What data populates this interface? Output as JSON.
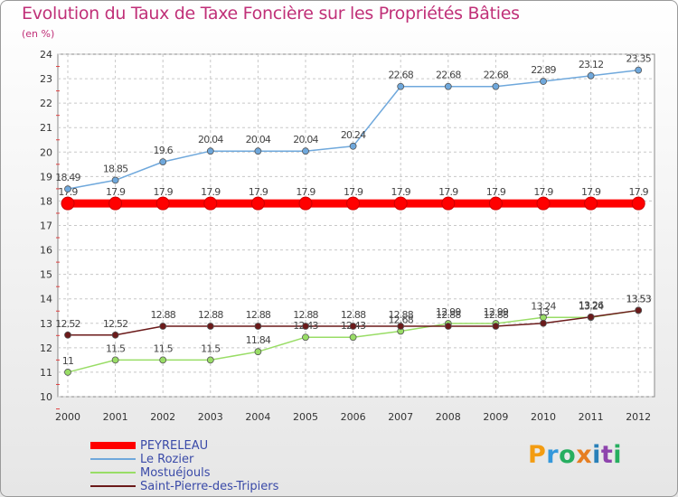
{
  "header": {
    "title": "Evolution du Taux de Taxe Foncière sur les Propriétés Bâties",
    "unit": "(en %)"
  },
  "logo": {
    "text": "Proxiti",
    "letters": [
      "P",
      "r",
      "o",
      "x",
      "i",
      "t",
      "i"
    ],
    "colors": [
      "#f39c12",
      "#3498db",
      "#27ae60",
      "#e67e22",
      "#2980b9",
      "#8e44ad",
      "#27ae60"
    ]
  },
  "chart_data": {
    "type": "line",
    "title": "Evolution du Taux de Taxe Foncière sur les Propriétés Bâties",
    "ylabel": "(en %)",
    "xlabel": "",
    "ylim": [
      10,
      24
    ],
    "yticks": [
      10,
      11,
      12,
      13,
      14,
      15,
      16,
      17,
      18,
      19,
      20,
      21,
      22,
      23,
      24
    ],
    "categories": [
      "2000",
      "2001",
      "2002",
      "2003",
      "2004",
      "2005",
      "2006",
      "2007",
      "2008",
      "2009",
      "2010",
      "2011",
      "2012"
    ],
    "grid": true,
    "legend_position": "bottom-left",
    "series": [
      {
        "name": "PEYRELEAU",
        "color": "#ff0000",
        "values": [
          17.9,
          17.9,
          17.9,
          17.9,
          17.9,
          17.9,
          17.9,
          17.9,
          17.9,
          17.9,
          17.9,
          17.9,
          17.9
        ],
        "labels": [
          "17.9",
          "17.9",
          "17.9",
          "17.9",
          "17.9",
          "17.9",
          "17.9",
          "17.9",
          "17.9",
          "17.9",
          "17.9",
          "17.9",
          "17.9"
        ]
      },
      {
        "name": "Le Rozier",
        "color": "#6fa8dc",
        "values": [
          18.49,
          18.85,
          19.6,
          20.04,
          20.04,
          20.04,
          20.24,
          22.68,
          22.68,
          22.68,
          22.89,
          23.12,
          23.35
        ],
        "labels": [
          "18.49",
          "18.85",
          "19.6",
          "20.04",
          "20.04",
          "20.04",
          "20.24",
          "22.68",
          "22.68",
          "22.68",
          "22.89",
          "23.12",
          "23.35"
        ]
      },
      {
        "name": "Mostuéjouls",
        "color": "#99dd66",
        "values": [
          11,
          11.5,
          11.5,
          11.5,
          11.84,
          12.43,
          12.43,
          12.68,
          12.99,
          12.99,
          13.24,
          13.24,
          13.53
        ],
        "labels": [
          "11",
          "11.5",
          "11.5",
          "11.5",
          "11.84",
          "12.43",
          "12.43",
          "12.68",
          "12.99",
          "12.99",
          "13.24",
          "13.24",
          "13.53"
        ]
      },
      {
        "name": "Saint-Pierre-des-Tripiers",
        "color": "#6b1a1a",
        "values": [
          12.52,
          12.52,
          12.88,
          12.88,
          12.88,
          12.88,
          12.88,
          12.88,
          12.88,
          12.88,
          13,
          13.26,
          13.53
        ],
        "labels": [
          "12.52",
          "12.52",
          "12.88",
          "12.88",
          "12.88",
          "12.88",
          "12.88",
          "12.88",
          "12.88",
          "12.88",
          "13",
          "13.26",
          "13.53"
        ]
      }
    ]
  }
}
